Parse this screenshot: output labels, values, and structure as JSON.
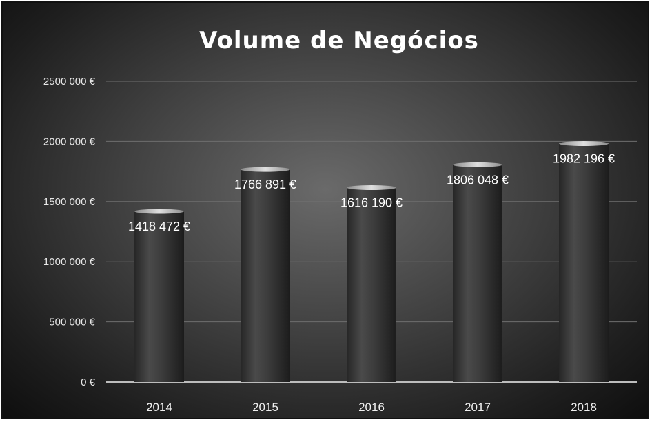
{
  "chart_data": {
    "type": "bar",
    "title": "Volume de Negócios",
    "xlabel": "",
    "ylabel": "",
    "categories": [
      "2014",
      "2015",
      "2016",
      "2017",
      "2018"
    ],
    "values": [
      1418472,
      1766891,
      1616190,
      1806048,
      1982196
    ],
    "data_labels": [
      "1418 472 €",
      "1766 891 €",
      "1616 190 €",
      "1806 048 €",
      "1982 196 €"
    ],
    "ylim": [
      0,
      2500000
    ],
    "yticks": [
      0,
      500000,
      1000000,
      1500000,
      2000000,
      2500000
    ],
    "ytick_labels": [
      "0 €",
      "500 000 €",
      "1000 000 €",
      "1500 000 €",
      "2000 000 €",
      "2500 000 €"
    ],
    "grid": true,
    "legend": "none",
    "style": "3d-cylinder",
    "colors": {
      "bar": "#3a3a3a",
      "background": "#4a4a4a",
      "text": "#ffffff"
    }
  }
}
